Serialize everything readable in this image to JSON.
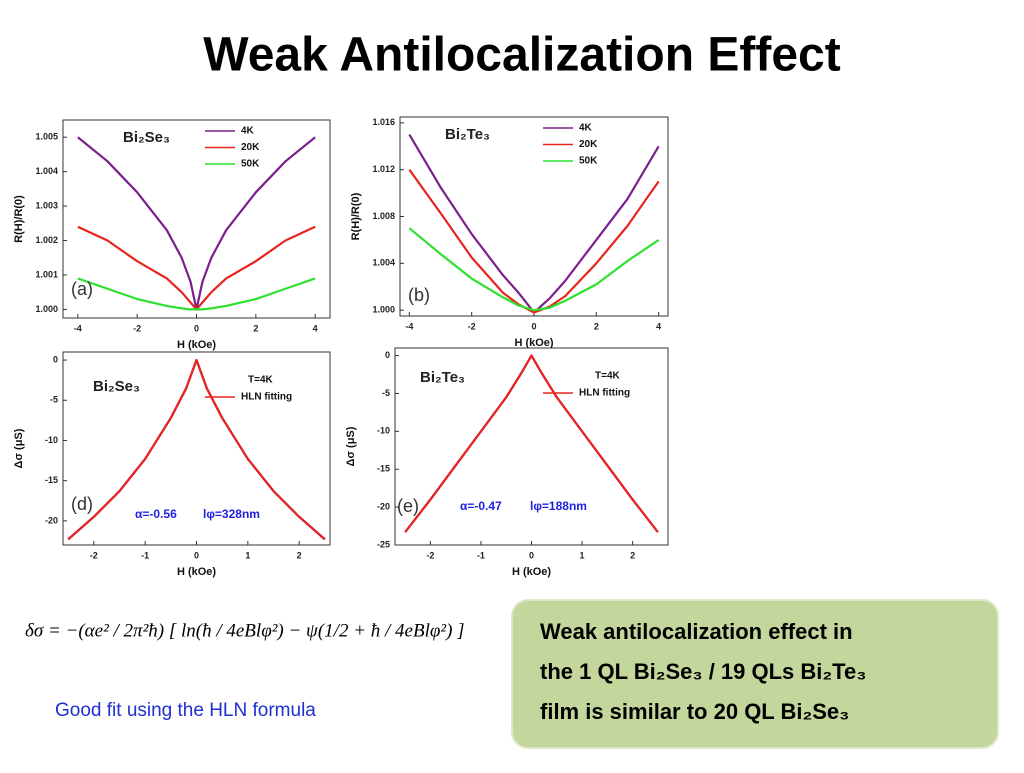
{
  "title": "Weak Antilocalization Effect",
  "formula": "δσ = −(αe² / 2π²ħ) [ ln(ħ / 4eBlφ²) − ψ(1/2 + ħ / 4eBlφ²) ]",
  "caption": "Good fit using the HLN formula",
  "note": [
    "Weak antilocalization effect in",
    "the 1 QL Bi₂Se₃ / 19 QLs Bi₂Te₃",
    "film is similar to 20 QL Bi₂Se₃"
  ],
  "chart_data": [
    {
      "type": "line",
      "label": "Bi₂Se₃",
      "x_label": "H (kOe)",
      "y_label": "R(H)/R(0)",
      "x": [
        -4,
        -3,
        -2,
        -1,
        -0.5,
        -0.2,
        0,
        0.2,
        0.5,
        1,
        2,
        3,
        4
      ],
      "series": [
        {
          "name": "4K",
          "color": "#7b1f8c",
          "values": [
            1.005,
            1.0043,
            1.0034,
            1.0023,
            1.0015,
            1.0008,
            1.0,
            1.0008,
            1.0015,
            1.0023,
            1.0034,
            1.0043,
            1.005
          ]
        },
        {
          "name": "20K",
          "color": "#e8241e",
          "values": [
            1.0024,
            1.002,
            1.0014,
            1.0009,
            1.0005,
            1.0002,
            1.0,
            1.0002,
            1.0005,
            1.0009,
            1.0014,
            1.002,
            1.0024
          ]
        },
        {
          "name": "50K",
          "color": "#2fe02f",
          "values": [
            1.0009,
            1.0006,
            1.0003,
            1.0001,
            1.00003,
            1.0,
            1.0,
            1.0,
            1.00003,
            1.0001,
            1.0003,
            1.0006,
            1.0009
          ]
        }
      ],
      "xlim": [
        -4.5,
        4.5
      ],
      "xticks": [
        -4,
        -2,
        0,
        2,
        4
      ],
      "ylim": [
        0.99975,
        1.0055
      ],
      "yticks": [
        {
          "value": 1,
          "label": "1.000"
        },
        1.001,
        1.002,
        1.003,
        1.004,
        1.005
      ],
      "legend": "top-right",
      "annotations": [
        "(a)"
      ]
    },
    {
      "type": "line",
      "label": "Bi₂Te₃",
      "x_label": "H (kOe)",
      "y_label": "R(H)/R(0)",
      "x": [
        -4,
        -3,
        -2,
        -1,
        -0.5,
        0,
        0.5,
        1,
        2,
        3,
        4
      ],
      "series": [
        {
          "name": "4K",
          "color": "#7b1f8c",
          "values": [
            1.015,
            1.0105,
            1.0065,
            1.003,
            1.0015,
            0.9998,
            1.001,
            1.0025,
            1.006,
            1.0095,
            1.014
          ]
        },
        {
          "name": "20K",
          "color": "#e8241e",
          "values": [
            1.012,
            1.0083,
            1.0045,
            1.0015,
            1.0005,
            0.9998,
            1.0003,
            1.0012,
            1.004,
            1.0072,
            1.011
          ]
        },
        {
          "name": "50K",
          "color": "#2fe02f",
          "values": [
            1.007,
            1.0048,
            1.0027,
            1.0011,
            1.0004,
            1.0,
            1.0002,
            1.0008,
            1.0022,
            1.0042,
            1.006
          ]
        }
      ],
      "xlim": [
        -4.3,
        4.3
      ],
      "xticks": [
        -4,
        -2,
        0,
        2,
        4
      ],
      "ylim": [
        0.9995,
        1.0165
      ],
      "yticks": [
        {
          "value": 1,
          "label": "1.000"
        },
        1.004,
        1.008,
        1.012,
        1.016
      ],
      "legend": "top-right",
      "annotations": [
        "(b)"
      ]
    },
    {
      "type": "line",
      "label": "Bi₂Se₃",
      "x_label": "H (kOe)",
      "y_label": "Δσ (μS)",
      "x": [
        -2.5,
        -2,
        -1.5,
        -1,
        -0.5,
        -0.2,
        0,
        0.2,
        0.5,
        1,
        1.5,
        2,
        2.5
      ],
      "series": [
        {
          "color": "#7b1f8c",
          "values": [
            -22.3,
            -19.5,
            -16.3,
            -12.3,
            -7.2,
            -3.5,
            0,
            -3.5,
            -7.2,
            -12.3,
            -16.3,
            -19.5,
            -22.3
          ]
        },
        {
          "name": "HLN fitting",
          "color": "#e8241e",
          "values": [
            -22.3,
            -19.5,
            -16.3,
            -12.3,
            -7.2,
            -3.5,
            0,
            -3.5,
            -7.2,
            -12.3,
            -16.3,
            -19.5,
            -22.3
          ]
        }
      ],
      "xlim": [
        -2.6,
        2.6
      ],
      "xticks": [
        -2,
        -1,
        0,
        1,
        2
      ],
      "ylim": [
        -23,
        1
      ],
      "yticks": [
        0,
        -5,
        -10,
        -15,
        -20
      ],
      "legend": "top-right",
      "annotations": [
        "T=4K",
        "(d)",
        "α=-0.56",
        "lφ=328nm"
      ]
    },
    {
      "type": "line",
      "label": "Bi₂Te₃",
      "x_label": "H (kOe)",
      "y_label": "Δσ (μS)",
      "x": [
        -2.5,
        -2,
        -1.5,
        -1,
        -0.5,
        -0.2,
        0,
        0.2,
        0.5,
        1,
        1.5,
        2,
        2.5
      ],
      "series": [
        {
          "color": "#7b1f8c",
          "values": [
            -23.3,
            -19,
            -14.5,
            -10,
            -5.5,
            -2.3,
            0,
            -2.3,
            -5.5,
            -10,
            -14.5,
            -19,
            -23.3
          ]
        },
        {
          "name": "HLN fitting",
          "color": "#e8241e",
          "values": [
            -23.3,
            -19,
            -14.5,
            -10,
            -5.5,
            -2.3,
            0,
            -2.3,
            -5.5,
            -10,
            -14.5,
            -19,
            -23.3
          ]
        }
      ],
      "xlim": [
        -2.7,
        2.7
      ],
      "xticks": [
        -2,
        -1,
        0,
        1,
        2
      ],
      "ylim": [
        -25,
        1
      ],
      "yticks": [
        0,
        -5,
        -10,
        -15,
        -20,
        -25
      ],
      "legend": "top-right",
      "annotations": [
        "T=4K",
        "(e)",
        "α=-0.47",
        "lφ=188nm"
      ]
    }
  ]
}
